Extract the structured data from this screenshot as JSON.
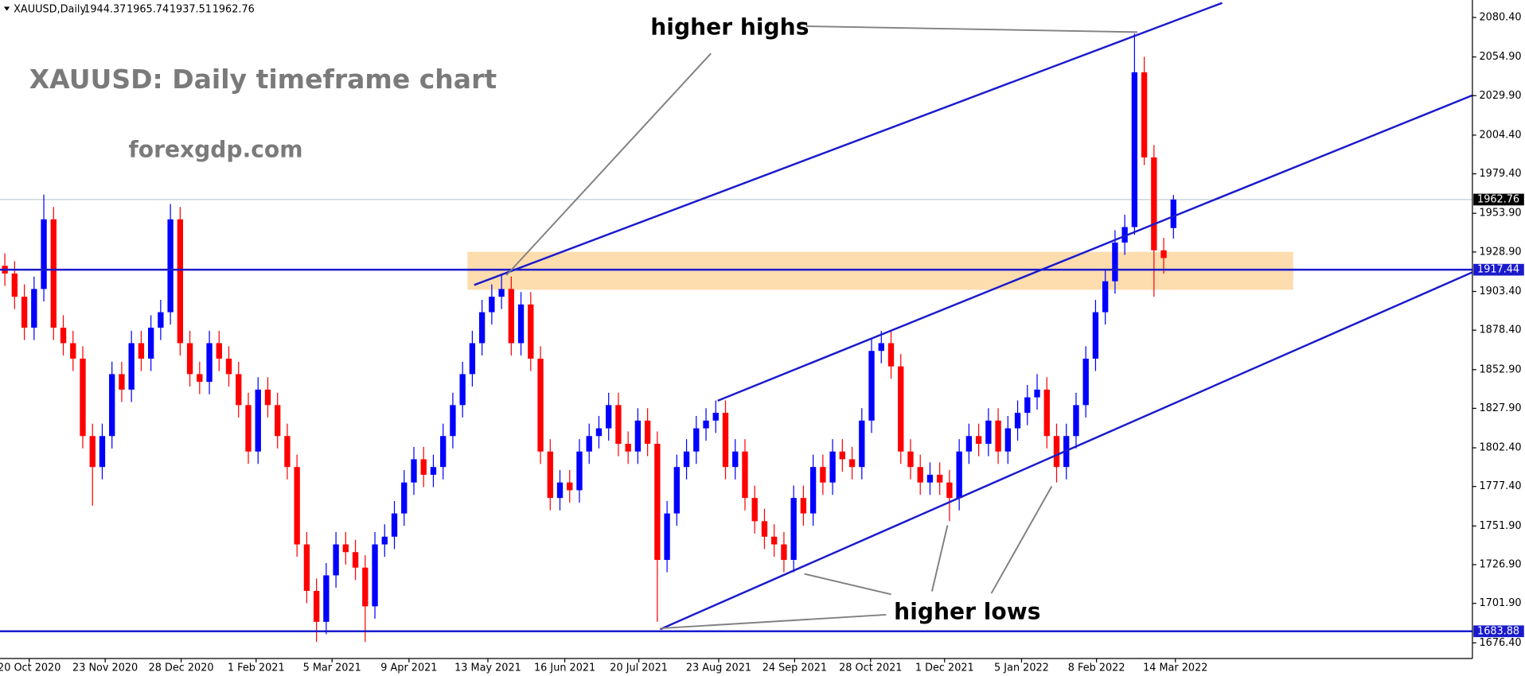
{
  "chart_data": {
    "type": "candlestick",
    "header": "XAUUSD,Daily",
    "title": "XAUUSD: Daily timeframe chart",
    "subtitle": "forexgdp.com",
    "annotations": [
      "higher highs",
      "higher lows"
    ],
    "open": [
      1920,
      1915,
      1900,
      1880,
      1905,
      1950,
      1880,
      1870,
      1860,
      1810,
      1790,
      1810,
      1850,
      1840,
      1870,
      1860,
      1880,
      1890,
      1950,
      1870,
      1850,
      1845,
      1870,
      1860,
      1850,
      1830,
      1800,
      1840,
      1830,
      1810,
      1790,
      1740,
      1710,
      1690,
      1720,
      1740,
      1735,
      1725,
      1700,
      1740,
      1745,
      1760,
      1780,
      1795,
      1785,
      1790,
      1810,
      1830,
      1850,
      1870,
      1890,
      1900,
      1905,
      1870,
      1895,
      1860,
      1800,
      1770,
      1780,
      1775,
      1800,
      1810,
      1815,
      1830,
      1805,
      1800,
      1820,
      1805,
      1730,
      1760,
      1790,
      1800,
      1815,
      1820,
      1825,
      1790,
      1800,
      1770,
      1755,
      1745,
      1740,
      1730,
      1770,
      1760,
      1790,
      1780,
      1800,
      1795,
      1790,
      1820,
      1865,
      1870,
      1855,
      1800,
      1790,
      1780,
      1785,
      1780,
      1770,
      1800,
      1810,
      1805,
      1820,
      1800,
      1815,
      1825,
      1835,
      1840,
      1810,
      1790,
      1810,
      1830,
      1860,
      1890,
      1910,
      1935,
      1945,
      2045,
      1990,
      1930,
      1944.37
    ],
    "high": [
      1928,
      1923,
      1908,
      1913,
      1966,
      1958,
      1888,
      1878,
      1868,
      1818,
      1818,
      1858,
      1858,
      1878,
      1878,
      1888,
      1898,
      1960,
      1958,
      1878,
      1858,
      1878,
      1878,
      1868,
      1858,
      1838,
      1848,
      1848,
      1838,
      1818,
      1798,
      1748,
      1718,
      1728,
      1748,
      1748,
      1743,
      1733,
      1748,
      1753,
      1768,
      1788,
      1803,
      1803,
      1798,
      1818,
      1838,
      1858,
      1878,
      1898,
      1908,
      1915,
      1913,
      1903,
      1903,
      1868,
      1808,
      1788,
      1788,
      1808,
      1818,
      1823,
      1838,
      1838,
      1813,
      1828,
      1828,
      1813,
      1768,
      1798,
      1808,
      1823,
      1828,
      1833,
      1833,
      1808,
      1808,
      1778,
      1763,
      1753,
      1748,
      1778,
      1778,
      1798,
      1798,
      1808,
      1808,
      1803,
      1828,
      1873,
      1878,
      1878,
      1863,
      1808,
      1798,
      1793,
      1793,
      1788,
      1808,
      1818,
      1818,
      1828,
      1828,
      1823,
      1833,
      1843,
      1850,
      1848,
      1818,
      1818,
      1838,
      1868,
      1898,
      1918,
      1943,
      1953,
      2070,
      2055,
      1998,
      1938,
      1965.74
    ],
    "low": [
      1907,
      1892,
      1872,
      1872,
      1897,
      1872,
      1862,
      1852,
      1802,
      1765,
      1782,
      1802,
      1832,
      1832,
      1852,
      1852,
      1872,
      1882,
      1862,
      1842,
      1837,
      1837,
      1852,
      1842,
      1822,
      1792,
      1792,
      1822,
      1802,
      1782,
      1732,
      1702,
      1677,
      1682,
      1712,
      1727,
      1717,
      1677,
      1692,
      1732,
      1737,
      1752,
      1772,
      1777,
      1777,
      1782,
      1802,
      1822,
      1842,
      1862,
      1882,
      1892,
      1862,
      1862,
      1852,
      1792,
      1762,
      1762,
      1767,
      1767,
      1792,
      1802,
      1807,
      1797,
      1792,
      1792,
      1797,
      1690,
      1722,
      1752,
      1782,
      1792,
      1807,
      1812,
      1782,
      1782,
      1762,
      1747,
      1737,
      1732,
      1722,
      1722,
      1752,
      1752,
      1772,
      1772,
      1787,
      1782,
      1782,
      1812,
      1857,
      1847,
      1792,
      1782,
      1772,
      1772,
      1772,
      1755,
      1762,
      1792,
      1797,
      1797,
      1792,
      1792,
      1807,
      1817,
      1827,
      1802,
      1780,
      1782,
      1802,
      1822,
      1852,
      1882,
      1902,
      1927,
      1940,
      1985,
      1900,
      1915,
      1937.51
    ],
    "close": [
      1915,
      1900,
      1880,
      1905,
      1950,
      1880,
      1870,
      1860,
      1810,
      1790,
      1810,
      1850,
      1840,
      1870,
      1860,
      1880,
      1890,
      1950,
      1870,
      1850,
      1845,
      1870,
      1860,
      1850,
      1830,
      1800,
      1840,
      1830,
      1810,
      1790,
      1740,
      1710,
      1690,
      1720,
      1740,
      1735,
      1725,
      1700,
      1740,
      1745,
      1760,
      1780,
      1795,
      1785,
      1790,
      1810,
      1830,
      1850,
      1870,
      1890,
      1900,
      1905,
      1870,
      1895,
      1860,
      1800,
      1770,
      1780,
      1775,
      1800,
      1810,
      1815,
      1830,
      1805,
      1800,
      1820,
      1805,
      1730,
      1760,
      1790,
      1800,
      1815,
      1820,
      1825,
      1790,
      1800,
      1770,
      1755,
      1745,
      1740,
      1730,
      1770,
      1760,
      1790,
      1780,
      1800,
      1795,
      1790,
      1820,
      1865,
      1870,
      1855,
      1800,
      1790,
      1780,
      1785,
      1780,
      1770,
      1800,
      1810,
      1805,
      1820,
      1800,
      1815,
      1825,
      1835,
      1840,
      1810,
      1790,
      1810,
      1830,
      1860,
      1890,
      1910,
      1935,
      1945,
      2045,
      1990,
      1930,
      1925,
      1962.76
    ],
    "bull_color": "#0000ff",
    "bear_color": "#ff0000",
    "xlim": [
      -0.5,
      150.7
    ],
    "ylim": [
      1666.3,
      2089.8
    ],
    "xticks": [
      {
        "value": 2.5,
        "label": "20 Oct 2020"
      },
      {
        "value": 10.3,
        "label": "23 Nov 2020"
      },
      {
        "value": 18.1,
        "label": "28 Dec 2020"
      },
      {
        "value": 25.8,
        "label": "1 Feb 2021"
      },
      {
        "value": 33.6,
        "label": "5 Mar 2021"
      },
      {
        "value": 41.5,
        "label": "9 Apr 2021"
      },
      {
        "value": 49.6,
        "label": "13 May 2021"
      },
      {
        "value": 57.5,
        "label": "16 Jun 2021"
      },
      {
        "value": 65.1,
        "label": "20 Jul 2021"
      },
      {
        "value": 73.3,
        "label": "23 Aug 2021"
      },
      {
        "value": 81.1,
        "label": "24 Sep 2021"
      },
      {
        "value": 88.9,
        "label": "28 Oct 2021"
      },
      {
        "value": 96.5,
        "label": "1 Dec 2021"
      },
      {
        "value": 104.4,
        "label": "5 Jan 2022"
      },
      {
        "value": 112.1,
        "label": "8 Feb 2022"
      },
      {
        "value": 120.2,
        "label": "14 Mar 2022"
      }
    ],
    "yticks": [
      {
        "value": 2080.4,
        "label": "2080.40"
      },
      {
        "value": 2054.9,
        "label": "2054.90"
      },
      {
        "value": 2029.9,
        "label": "2029.90"
      },
      {
        "value": 2004.4,
        "label": "2004.40"
      },
      {
        "value": 1979.4,
        "label": "1979.40"
      },
      {
        "value": 1953.9,
        "label": "1953.90"
      },
      {
        "value": 1928.9,
        "label": "1928.90"
      },
      {
        "value": 1903.4,
        "label": "1903.40"
      },
      {
        "value": 1878.4,
        "label": "1878.40"
      },
      {
        "value": 1852.9,
        "label": "1852.90"
      },
      {
        "value": 1827.9,
        "label": "1827.90"
      },
      {
        "value": 1802.4,
        "label": "1802.40"
      },
      {
        "value": 1777.4,
        "label": "1777.40"
      },
      {
        "value": 1751.9,
        "label": "1751.90"
      },
      {
        "value": 1726.9,
        "label": "1726.90"
      },
      {
        "value": 1701.9,
        "label": "1701.90"
      },
      {
        "value": 1676.4,
        "label": "1676.40"
      }
    ],
    "levels": [
      1917.44,
      1683.88
    ],
    "level_color": "#1a1acd",
    "trendlines": [
      {
        "x": [
          48.2,
          125
        ],
        "y": [
          1907.6,
          2089.8
        ]
      },
      {
        "x": [
          73.2,
          150.7
        ],
        "y": [
          1832.8,
          2030.1
        ]
      },
      {
        "x": [
          67.3,
          150.7
        ],
        "y": [
          1685.2,
          1915.8
        ]
      }
    ],
    "zone": {
      "x": [
        47.5,
        132.3
      ],
      "y": [
        1904.5,
        1929
      ],
      "color": "#fddcae"
    }
  }
}
